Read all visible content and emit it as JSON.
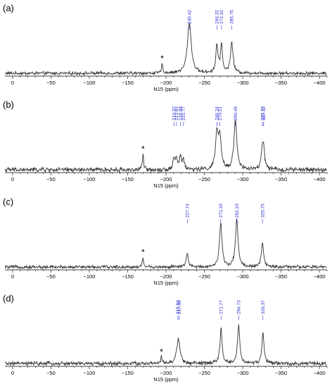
{
  "colors": {
    "trace": "#333333",
    "peak_label": "#2b2bd6",
    "axis": "#000000",
    "background": "#ffffff"
  },
  "chart_data": [
    {
      "type": "line",
      "panel_label": "(a)",
      "xlabel": "N15 (ppm)",
      "xlim": [
        10,
        -410
      ],
      "x_ticks": [
        0,
        -50,
        -100,
        -150,
        -200,
        -250,
        -300,
        -350,
        -400
      ],
      "peak_labels": [
        "230.42",
        "266.32",
        "272.32",
        "285.75"
      ],
      "peaks": [
        {
          "ppm": -230.42,
          "height": 1.0,
          "width": 3.0
        },
        {
          "ppm": -266.32,
          "height": 0.55,
          "width": 1.6
        },
        {
          "ppm": -272.32,
          "height": 0.55,
          "width": 1.6
        },
        {
          "ppm": -285.75,
          "height": 0.6,
          "width": 2.0
        },
        {
          "ppm": -195.0,
          "height": 0.18,
          "width": 1.0
        }
      ],
      "noise": 0.025,
      "annotations": [
        {
          "text": "*",
          "ppm": -195.0
        }
      ]
    },
    {
      "type": "line",
      "panel_label": "(b)",
      "xlabel": "N15 (ppm)",
      "xlim": [
        10,
        -410
      ],
      "x_ticks": [
        0,
        -50,
        -100,
        -150,
        -200,
        -250,
        -300,
        -350,
        -400
      ],
      "peak_labels": [
        "210.37",
        "213.63",
        "218.68",
        "222.77",
        "266.24",
        "270.21",
        "290.49",
        "325.77",
        "327.32"
      ],
      "peaks": [
        {
          "ppm": -210.37,
          "height": 0.22,
          "width": 1.5
        },
        {
          "ppm": -213.63,
          "height": 0.2,
          "width": 1.5
        },
        {
          "ppm": -218.68,
          "height": 0.24,
          "width": 1.5
        },
        {
          "ppm": -222.77,
          "height": 0.2,
          "width": 1.5
        },
        {
          "ppm": -266.24,
          "height": 0.7,
          "width": 2.0
        },
        {
          "ppm": -270.21,
          "height": 0.62,
          "width": 2.0
        },
        {
          "ppm": -290.49,
          "height": 1.0,
          "width": 2.2
        },
        {
          "ppm": -325.77,
          "height": 0.4,
          "width": 1.8
        },
        {
          "ppm": -327.32,
          "height": 0.3,
          "width": 1.5
        },
        {
          "ppm": -170.0,
          "height": 0.3,
          "width": 1.0
        }
      ],
      "noise": 0.035,
      "annotations": [
        {
          "text": "*",
          "ppm": -170.0
        }
      ]
    },
    {
      "type": "line",
      "panel_label": "(c)",
      "xlabel": "N15 (ppm)",
      "xlim": [
        10,
        -410
      ],
      "x_ticks": [
        0,
        -50,
        -100,
        -150,
        -200,
        -250,
        -300,
        -350,
        -400
      ],
      "peak_labels": [
        "227.74",
        "271.33",
        "292.23",
        "325.75"
      ],
      "peaks": [
        {
          "ppm": -227.74,
          "height": 0.27,
          "width": 1.5
        },
        {
          "ppm": -271.33,
          "height": 0.85,
          "width": 2.0
        },
        {
          "ppm": -292.23,
          "height": 0.95,
          "width": 2.0
        },
        {
          "ppm": -325.75,
          "height": 0.45,
          "width": 1.8
        },
        {
          "ppm": -170.0,
          "height": 0.18,
          "width": 1.0
        }
      ],
      "noise": 0.025,
      "annotations": [
        {
          "text": "*",
          "ppm": -170.0
        }
      ]
    },
    {
      "type": "line",
      "panel_label": "(d)",
      "xlabel": "N15 (ppm)",
      "xlim": [
        10,
        -410
      ],
      "x_ticks": [
        0,
        -50,
        -100,
        -150,
        -200,
        -250,
        -300,
        -350,
        -400
      ],
      "peak_labels": [
        "215.50",
        "217.09",
        "271.77",
        "294.73",
        "326.37"
      ],
      "peaks": [
        {
          "ppm": -215.5,
          "height": 0.32,
          "width": 2.5
        },
        {
          "ppm": -217.09,
          "height": 0.2,
          "width": 2.0
        },
        {
          "ppm": -271.77,
          "height": 0.7,
          "width": 1.6
        },
        {
          "ppm": -294.73,
          "height": 0.75,
          "width": 1.8
        },
        {
          "ppm": -326.37,
          "height": 0.6,
          "width": 1.6
        },
        {
          "ppm": -194.0,
          "height": 0.12,
          "width": 1.0
        }
      ],
      "noise": 0.03,
      "annotations": [
        {
          "text": "*",
          "ppm": -194.0
        }
      ]
    }
  ]
}
